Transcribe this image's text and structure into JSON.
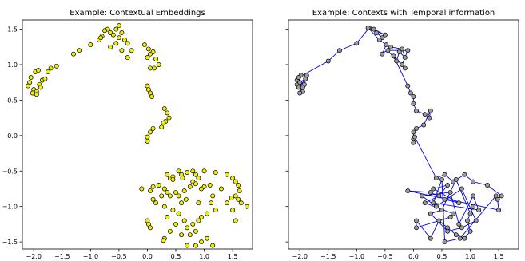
{
  "chart_data": [
    {
      "type": "scatter",
      "title": "Example: Contextual Embeddings",
      "xlim": [
        -2.2,
        1.85
      ],
      "ylim": [
        -1.6,
        1.63
      ],
      "x_ticks": [
        -2.0,
        -1.5,
        -1.0,
        -0.5,
        0.0,
        0.5,
        1.0,
        1.5
      ],
      "x_tick_labels": [
        "−2.0",
        "−1.5",
        "−1.0",
        "−0.5",
        "0.0",
        "0.5",
        "1.0",
        "1.5"
      ],
      "y_ticks": [
        -1.5,
        -1.0,
        -0.5,
        0.0,
        0.5,
        1.0,
        1.5
      ],
      "y_tick_labels": [
        "−1.5",
        "−1.0",
        "−0.5",
        "0.0",
        "0.5",
        "1.0",
        "1.5"
      ],
      "grid": false,
      "marker_color": "#f2ee00",
      "marker_edge": "#000000",
      "points": [
        [
          -2.05,
          0.82
        ],
        [
          -2.07,
          0.75
        ],
        [
          -2.1,
          0.7
        ],
        [
          -2.0,
          0.65
        ],
        [
          -1.95,
          0.62
        ],
        [
          -2.02,
          0.6
        ],
        [
          -1.9,
          0.72
        ],
        [
          -1.85,
          0.78
        ],
        [
          -1.8,
          0.8
        ],
        [
          -1.97,
          0.9
        ],
        [
          -1.92,
          0.92
        ],
        [
          -1.75,
          0.9
        ],
        [
          -1.7,
          0.95
        ],
        [
          -1.6,
          0.98
        ],
        [
          -1.88,
          0.68
        ],
        [
          -1.95,
          0.58
        ],
        [
          -1.3,
          1.15
        ],
        [
          -1.2,
          1.2
        ],
        [
          -1.0,
          1.28
        ],
        [
          -0.85,
          1.35
        ],
        [
          -0.8,
          1.4
        ],
        [
          -0.7,
          1.5
        ],
        [
          -0.65,
          1.45
        ],
        [
          -0.6,
          1.42
        ],
        [
          -0.55,
          1.5
        ],
        [
          -0.5,
          1.38
        ],
        [
          -0.45,
          1.45
        ],
        [
          -0.4,
          1.35
        ],
        [
          -0.35,
          1.3
        ],
        [
          -0.55,
          1.3
        ],
        [
          -0.65,
          1.25
        ],
        [
          -0.45,
          1.2
        ],
        [
          -0.35,
          1.1
        ],
        [
          -0.28,
          1.2
        ],
        [
          -0.75,
          1.48
        ],
        [
          -0.82,
          1.38
        ],
        [
          -0.5,
          1.55
        ],
        [
          -0.05,
          1.28
        ],
        [
          0.02,
          1.22
        ],
        [
          0.05,
          1.15
        ],
        [
          0.0,
          1.1
        ],
        [
          0.1,
          1.18
        ],
        [
          0.15,
          1.08
        ],
        [
          0.2,
          1.0
        ],
        [
          0.12,
          0.95
        ],
        [
          0.05,
          0.95
        ],
        [
          0.0,
          0.7
        ],
        [
          0.02,
          0.65
        ],
        [
          0.05,
          0.6
        ],
        [
          0.08,
          0.55
        ],
        [
          0.3,
          0.38
        ],
        [
          0.35,
          0.32
        ],
        [
          0.38,
          0.25
        ],
        [
          0.32,
          0.2
        ],
        [
          0.28,
          0.18
        ],
        [
          0.25,
          0.12
        ],
        [
          0.1,
          0.1
        ],
        [
          0.05,
          0.05
        ],
        [
          0.0,
          -0.02
        ],
        [
          0.0,
          -0.08
        ],
        [
          0.35,
          -0.55
        ],
        [
          0.4,
          -0.6
        ],
        [
          0.45,
          -0.58
        ],
        [
          0.55,
          -0.5
        ],
        [
          0.6,
          -0.55
        ],
        [
          0.7,
          -0.52
        ],
        [
          0.8,
          -0.5
        ],
        [
          0.85,
          -0.55
        ],
        [
          0.9,
          -0.6
        ],
        [
          1.0,
          -0.5
        ],
        [
          1.2,
          -0.52
        ],
        [
          1.4,
          -0.55
        ],
        [
          1.5,
          -0.6
        ],
        [
          1.55,
          -0.65
        ],
        [
          1.6,
          -0.7
        ],
        [
          1.62,
          -0.78
        ],
        [
          1.55,
          -0.85
        ],
        [
          1.6,
          -0.9
        ],
        [
          1.65,
          -0.95
        ],
        [
          1.75,
          -1.0
        ],
        [
          1.48,
          -0.88
        ],
        [
          1.5,
          -1.05
        ],
        [
          1.55,
          -1.2
        ],
        [
          -0.1,
          -0.75
        ],
        [
          0.05,
          -0.78
        ],
        [
          0.1,
          -0.72
        ],
        [
          0.2,
          -0.7
        ],
        [
          0.3,
          -0.75
        ],
        [
          0.35,
          -0.8
        ],
        [
          0.4,
          -0.85
        ],
        [
          0.5,
          -0.8
        ],
        [
          0.55,
          -0.85
        ],
        [
          0.65,
          -0.78
        ],
        [
          0.75,
          -0.72
        ],
        [
          0.8,
          -0.65
        ],
        [
          0.85,
          -0.68
        ],
        [
          0.95,
          -0.75
        ],
        [
          1.0,
          -0.72
        ],
        [
          1.1,
          -0.7
        ],
        [
          1.15,
          -0.85
        ],
        [
          1.12,
          -0.95
        ],
        [
          1.2,
          -1.05
        ],
        [
          1.05,
          -1.1
        ],
        [
          0.95,
          -1.15
        ],
        [
          0.9,
          -1.2
        ],
        [
          0.8,
          -1.25
        ],
        [
          0.85,
          -1.35
        ],
        [
          0.1,
          -0.9
        ],
        [
          0.15,
          -0.95
        ],
        [
          0.3,
          -1.0
        ],
        [
          0.45,
          -1.05
        ],
        [
          0.55,
          -1.1
        ],
        [
          0.35,
          -1.15
        ],
        [
          0.5,
          -1.25
        ],
        [
          0.65,
          -1.2
        ],
        [
          0.7,
          -1.3
        ],
        [
          0.75,
          -1.4
        ],
        [
          0.7,
          -1.55
        ],
        [
          0.85,
          -1.55
        ],
        [
          0.95,
          -1.5
        ],
        [
          1.05,
          -1.45
        ],
        [
          1.15,
          -1.55
        ],
        [
          0.0,
          -1.2
        ],
        [
          0.02,
          -1.25
        ],
        [
          0.05,
          -1.3
        ],
        [
          0.3,
          -1.45
        ],
        [
          0.28,
          -1.48
        ],
        [
          0.45,
          -0.62
        ],
        [
          0.62,
          -0.6
        ],
        [
          0.68,
          -0.9
        ],
        [
          0.6,
          -0.95
        ],
        [
          0.25,
          -0.85
        ],
        [
          0.4,
          -1.35
        ],
        [
          0.6,
          -1.4
        ],
        [
          0.9,
          -0.95
        ],
        [
          1.3,
          -0.75
        ],
        [
          1.4,
          -0.95
        ]
      ]
    },
    {
      "type": "line",
      "title": "Example: Contexts with Temporal information",
      "xlim": [
        -2.2,
        1.85
      ],
      "ylim": [
        -1.6,
        1.63
      ],
      "x_ticks": [
        -2.0,
        -1.5,
        -1.0,
        -0.5,
        0.0,
        0.5,
        1.0,
        1.5
      ],
      "x_tick_labels": [
        "−2.0",
        "−1.5",
        "−1.0",
        "−0.5",
        "0.0",
        "0.5",
        "1.0",
        "1.5"
      ],
      "y_ticks": [
        -1.5,
        -1.0,
        -0.5,
        0.0,
        0.5,
        1.0,
        1.5
      ],
      "y_tick_labels": [],
      "grid": false,
      "line_color": "#0000ee",
      "marker_color": "#9a9a9a",
      "marker_edge": "#000000",
      "points": [
        [
          -2.05,
          0.78
        ],
        [
          -1.98,
          0.85
        ],
        [
          -2.05,
          0.72
        ],
        [
          -1.95,
          0.62
        ],
        [
          -2.0,
          0.75
        ],
        [
          -1.9,
          0.8
        ],
        [
          -2.02,
          0.68
        ],
        [
          -1.92,
          0.72
        ],
        [
          -1.88,
          0.85
        ],
        [
          -2.0,
          0.6
        ],
        [
          -1.95,
          0.68
        ],
        [
          -2.02,
          0.82
        ],
        [
          -1.5,
          1.05
        ],
        [
          -1.3,
          1.2
        ],
        [
          -1.0,
          1.3
        ],
        [
          -0.78,
          1.52
        ],
        [
          -0.65,
          1.45
        ],
        [
          -0.55,
          1.38
        ],
        [
          -0.7,
          1.5
        ],
        [
          -0.5,
          1.42
        ],
        [
          -0.8,
          1.52
        ],
        [
          -0.6,
          1.35
        ],
        [
          -0.48,
          1.28
        ],
        [
          -0.55,
          1.15
        ],
        [
          -0.4,
          1.25
        ],
        [
          -0.2,
          1.22
        ],
        [
          -0.15,
          1.1
        ],
        [
          -0.25,
          1.18
        ],
        [
          -0.3,
          1.05
        ],
        [
          -0.45,
          1.2
        ],
        [
          -0.1,
          1.2
        ],
        [
          -0.2,
          1.0
        ],
        [
          -0.15,
          0.95
        ],
        [
          -0.35,
          1.12
        ],
        [
          -0.1,
          0.7
        ],
        [
          -0.05,
          0.6
        ],
        [
          0.0,
          0.55
        ],
        [
          0.0,
          0.45
        ],
        [
          0.05,
          0.35
        ],
        [
          0.2,
          0.3
        ],
        [
          0.28,
          0.25
        ],
        [
          0.3,
          0.35
        ],
        [
          0.18,
          0.15
        ],
        [
          0.05,
          0.1
        ],
        [
          0.0,
          0.05
        ],
        [
          0.0,
          -0.05
        ],
        [
          0.0,
          -0.1
        ],
        [
          0.02,
          -0.02
        ],
        [
          0.4,
          -0.6
        ],
        [
          0.55,
          -0.55
        ],
        [
          0.7,
          -0.65
        ],
        [
          0.9,
          -0.55
        ],
        [
          1.05,
          -0.65
        ],
        [
          1.3,
          -0.7
        ],
        [
          1.55,
          -0.85
        ],
        [
          1.48,
          -0.9
        ],
        [
          1.5,
          -1.05
        ],
        [
          -0.1,
          -0.78
        ],
        [
          0.3,
          -0.8
        ],
        [
          0.55,
          -0.9
        ],
        [
          0.8,
          -0.95
        ],
        [
          0.35,
          -0.75
        ],
        [
          0.6,
          -0.7
        ],
        [
          0.45,
          -0.85
        ],
        [
          0.2,
          -0.95
        ],
        [
          0.7,
          -1.1
        ],
        [
          0.65,
          -1.15
        ],
        [
          0.05,
          -1.3
        ],
        [
          0.05,
          -1.2
        ],
        [
          0.3,
          -1.45
        ],
        [
          0.45,
          -1.2
        ],
        [
          0.6,
          -1.3
        ],
        [
          0.75,
          -1.4
        ],
        [
          0.9,
          -1.45
        ],
        [
          1.0,
          -1.35
        ],
        [
          0.95,
          -1.2
        ],
        [
          1.05,
          -1.0
        ],
        [
          1.0,
          -1.1
        ],
        [
          0.75,
          -0.62
        ],
        [
          0.5,
          -1.05
        ],
        [
          0.3,
          -1.1
        ],
        [
          0.6,
          -1.35
        ],
        [
          0.85,
          -1.3
        ],
        [
          1.1,
          -1.2
        ],
        [
          0.85,
          -0.75
        ],
        [
          0.4,
          -1.0
        ],
        [
          0.15,
          -0.85
        ],
        [
          0.65,
          -0.8
        ],
        [
          0.8,
          -1.25
        ],
        [
          1.05,
          -0.85
        ],
        [
          1.15,
          -1.05
        ],
        [
          0.35,
          -0.95
        ],
        [
          0.5,
          -0.62
        ],
        [
          0.55,
          -1.5
        ],
        [
          0.82,
          -1.45
        ],
        [
          1.45,
          -0.85
        ]
      ]
    }
  ]
}
